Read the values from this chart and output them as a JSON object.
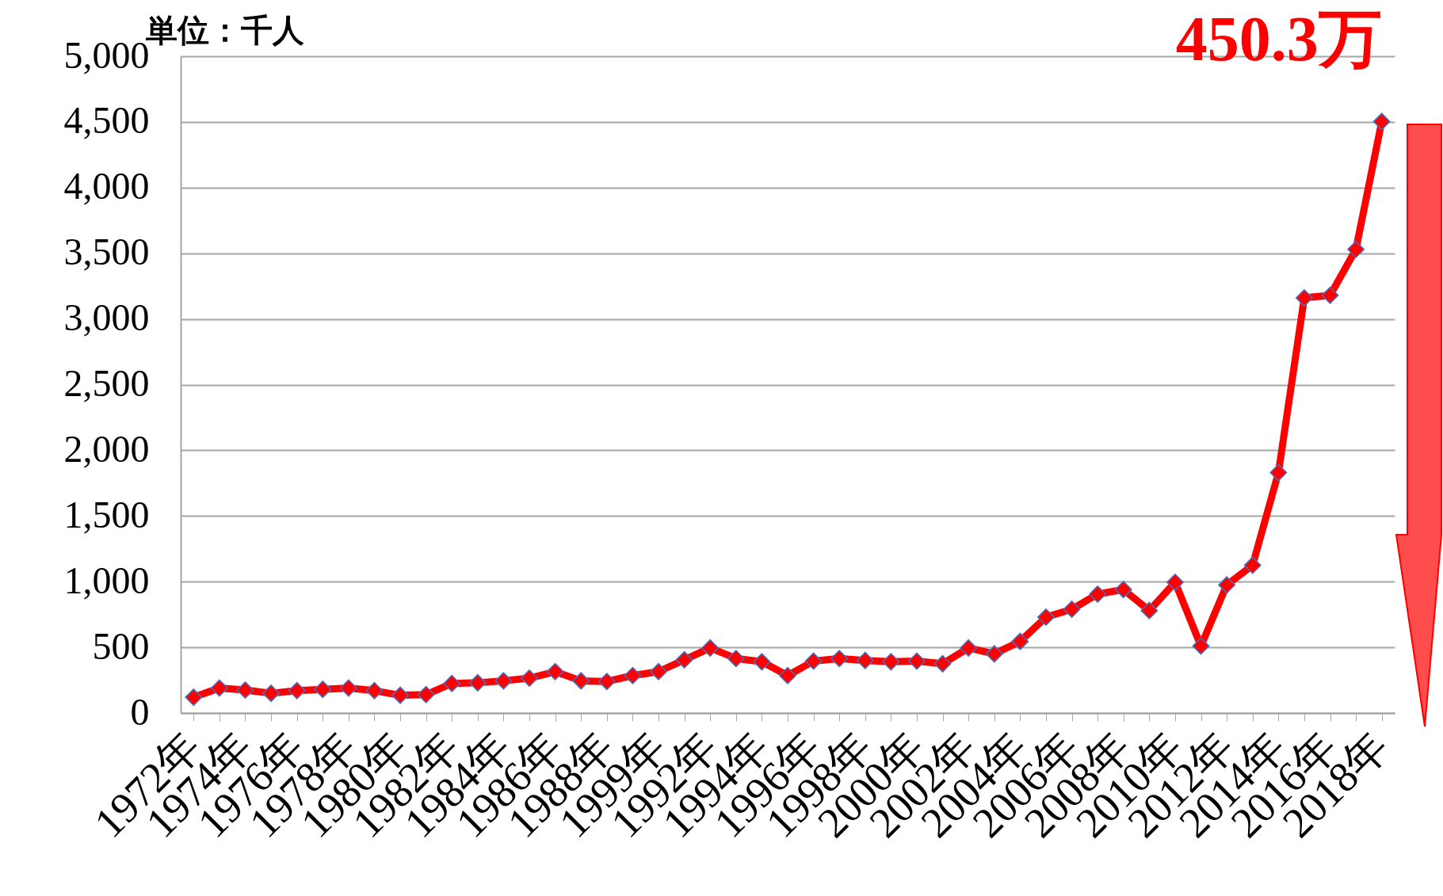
{
  "chart_data": {
    "type": "line",
    "ylabel": "単位：千人",
    "categories": [
      "1972年",
      null,
      "1974年",
      null,
      "1976年",
      null,
      "1978年",
      null,
      "1980年",
      null,
      "1982年",
      null,
      "1984年",
      null,
      "1986年",
      null,
      "1988年",
      null,
      "1999年",
      null,
      "1992年",
      null,
      "1994年",
      null,
      "1996年",
      null,
      "1998年",
      null,
      "2000年",
      null,
      "2002年",
      null,
      "2004年",
      null,
      "2006年",
      null,
      "2008年",
      null,
      "2010年",
      null,
      "2012年",
      null,
      "2014年",
      null,
      "2016年",
      null,
      "2018年"
    ],
    "series": [
      {
        "color": "#ff0000",
        "values": [
          120,
          190,
          175,
          150,
          170,
          180,
          190,
          170,
          135,
          140,
          225,
          230,
          245,
          265,
          315,
          245,
          240,
          285,
          315,
          405,
          495,
          415,
          390,
          285,
          395,
          415,
          400,
          390,
          395,
          375,
          495,
          450,
          545,
          730,
          790,
          905,
          940,
          780,
          995,
          510,
          975,
          1125,
          1830,
          3160,
          3180,
          3530,
          4503
        ]
      }
    ],
    "ylim": [
      0,
      5000
    ],
    "yticks": [
      0,
      500,
      {
        "value": 1000,
        "label": "1,000"
      },
      {
        "value": 1500,
        "label": "1,500"
      },
      {
        "value": 2000,
        "label": "2,000"
      },
      {
        "value": 2500,
        "label": "2,500"
      },
      {
        "value": 3000,
        "label": "3,000"
      },
      {
        "value": 3500,
        "label": "3,500"
      },
      {
        "value": 4000,
        "label": "4,000"
      },
      {
        "value": 4500,
        "label": "4,500"
      },
      {
        "value": 5000,
        "label": "5,000"
      }
    ],
    "grid": "y",
    "marker": "diamond",
    "line_style": "solid",
    "annotations": [
      {
        "text": "450.3万",
        "x": "2018年",
        "y": 4503
      }
    ]
  }
}
